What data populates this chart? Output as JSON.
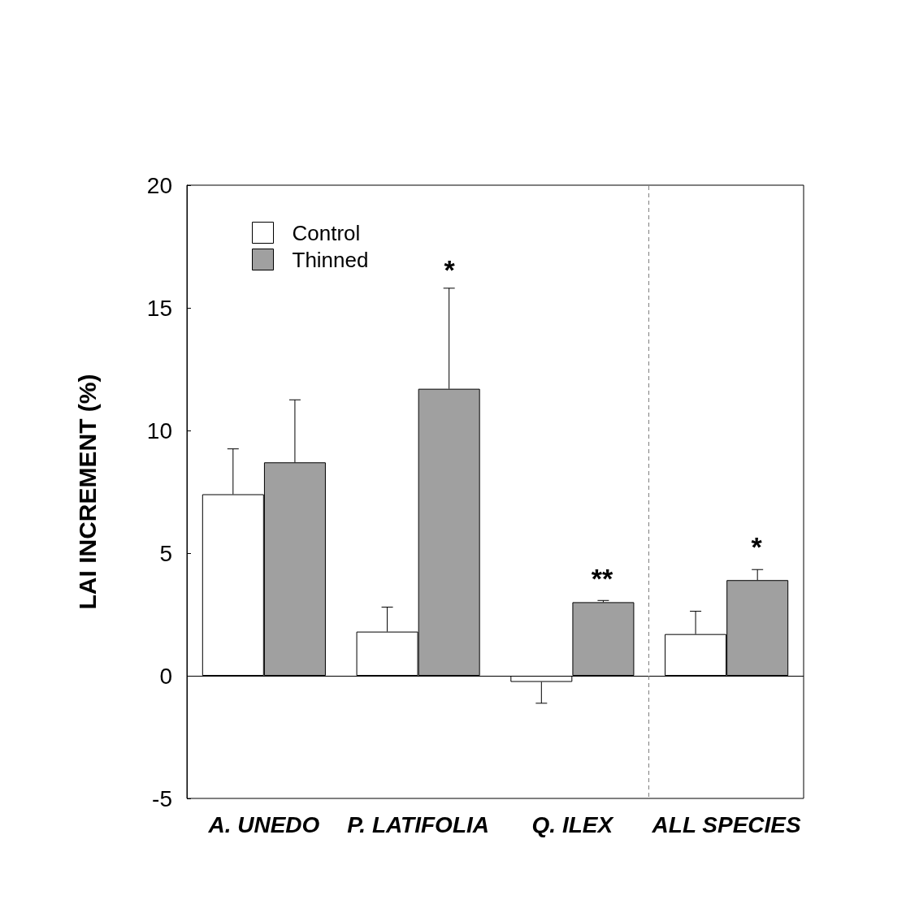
{
  "chart_data": {
    "type": "bar",
    "categories": [
      "A. UNEDO",
      "P. LATIFOLIA",
      "Q. ILEX",
      "ALL SPECIES"
    ],
    "ylabel": "LAI INCREMENT (%)",
    "series": [
      {
        "name": "Control",
        "color": "#ffffff",
        "values": [
          7.4,
          1.8,
          -0.25,
          1.7
        ],
        "errors": [
          1.85,
          1.0,
          0.87,
          0.93
        ]
      },
      {
        "name": "Thinned",
        "color": "#a0a0a0",
        "values": [
          8.7,
          11.7,
          3.0,
          3.9
        ],
        "errors": [
          2.55,
          4.1,
          0.07,
          0.43
        ]
      }
    ],
    "ylim": [
      -5,
      20
    ],
    "yticks": [
      -5,
      0,
      5,
      10,
      15,
      20
    ],
    "ref_lines": [
      {
        "axis": "y",
        "value": 0
      }
    ],
    "annotations": [
      "*",
      "**",
      "*"
    ],
    "legend": "top left",
    "grid": false
  }
}
